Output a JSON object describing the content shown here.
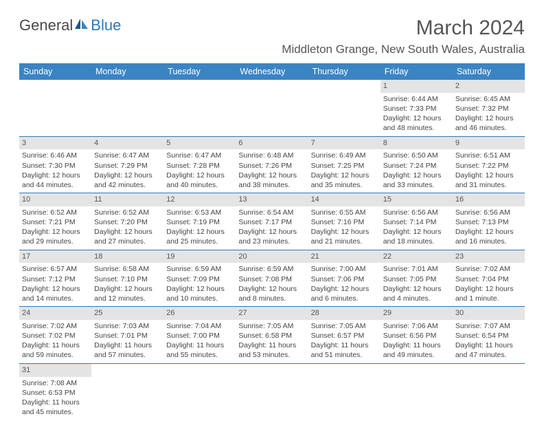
{
  "logo": {
    "general": "General",
    "blue": "Blue"
  },
  "title": "March 2024",
  "location": "Middleton Grange, New South Wales, Australia",
  "colors": {
    "header_bg": "#3b84c4",
    "header_text": "#ffffff",
    "daynum_bg": "#e4e4e4",
    "border": "#2a7ab9",
    "text": "#444444",
    "logo_blue": "#2a7ab9"
  },
  "weekdays": [
    "Sunday",
    "Monday",
    "Tuesday",
    "Wednesday",
    "Thursday",
    "Friday",
    "Saturday"
  ],
  "weeks": [
    [
      {
        "n": "",
        "empty": true
      },
      {
        "n": "",
        "empty": true
      },
      {
        "n": "",
        "empty": true
      },
      {
        "n": "",
        "empty": true
      },
      {
        "n": "",
        "empty": true
      },
      {
        "n": "1",
        "sr": "Sunrise: 6:44 AM",
        "ss": "Sunset: 7:33 PM",
        "dl1": "Daylight: 12 hours",
        "dl2": "and 48 minutes."
      },
      {
        "n": "2",
        "sr": "Sunrise: 6:45 AM",
        "ss": "Sunset: 7:32 PM",
        "dl1": "Daylight: 12 hours",
        "dl2": "and 46 minutes."
      }
    ],
    [
      {
        "n": "3",
        "sr": "Sunrise: 6:46 AM",
        "ss": "Sunset: 7:30 PM",
        "dl1": "Daylight: 12 hours",
        "dl2": "and 44 minutes."
      },
      {
        "n": "4",
        "sr": "Sunrise: 6:47 AM",
        "ss": "Sunset: 7:29 PM",
        "dl1": "Daylight: 12 hours",
        "dl2": "and 42 minutes."
      },
      {
        "n": "5",
        "sr": "Sunrise: 6:47 AM",
        "ss": "Sunset: 7:28 PM",
        "dl1": "Daylight: 12 hours",
        "dl2": "and 40 minutes."
      },
      {
        "n": "6",
        "sr": "Sunrise: 6:48 AM",
        "ss": "Sunset: 7:26 PM",
        "dl1": "Daylight: 12 hours",
        "dl2": "and 38 minutes."
      },
      {
        "n": "7",
        "sr": "Sunrise: 6:49 AM",
        "ss": "Sunset: 7:25 PM",
        "dl1": "Daylight: 12 hours",
        "dl2": "and 35 minutes."
      },
      {
        "n": "8",
        "sr": "Sunrise: 6:50 AM",
        "ss": "Sunset: 7:24 PM",
        "dl1": "Daylight: 12 hours",
        "dl2": "and 33 minutes."
      },
      {
        "n": "9",
        "sr": "Sunrise: 6:51 AM",
        "ss": "Sunset: 7:22 PM",
        "dl1": "Daylight: 12 hours",
        "dl2": "and 31 minutes."
      }
    ],
    [
      {
        "n": "10",
        "sr": "Sunrise: 6:52 AM",
        "ss": "Sunset: 7:21 PM",
        "dl1": "Daylight: 12 hours",
        "dl2": "and 29 minutes."
      },
      {
        "n": "11",
        "sr": "Sunrise: 6:52 AM",
        "ss": "Sunset: 7:20 PM",
        "dl1": "Daylight: 12 hours",
        "dl2": "and 27 minutes."
      },
      {
        "n": "12",
        "sr": "Sunrise: 6:53 AM",
        "ss": "Sunset: 7:19 PM",
        "dl1": "Daylight: 12 hours",
        "dl2": "and 25 minutes."
      },
      {
        "n": "13",
        "sr": "Sunrise: 6:54 AM",
        "ss": "Sunset: 7:17 PM",
        "dl1": "Daylight: 12 hours",
        "dl2": "and 23 minutes."
      },
      {
        "n": "14",
        "sr": "Sunrise: 6:55 AM",
        "ss": "Sunset: 7:16 PM",
        "dl1": "Daylight: 12 hours",
        "dl2": "and 21 minutes."
      },
      {
        "n": "15",
        "sr": "Sunrise: 6:56 AM",
        "ss": "Sunset: 7:14 PM",
        "dl1": "Daylight: 12 hours",
        "dl2": "and 18 minutes."
      },
      {
        "n": "16",
        "sr": "Sunrise: 6:56 AM",
        "ss": "Sunset: 7:13 PM",
        "dl1": "Daylight: 12 hours",
        "dl2": "and 16 minutes."
      }
    ],
    [
      {
        "n": "17",
        "sr": "Sunrise: 6:57 AM",
        "ss": "Sunset: 7:12 PM",
        "dl1": "Daylight: 12 hours",
        "dl2": "and 14 minutes."
      },
      {
        "n": "18",
        "sr": "Sunrise: 6:58 AM",
        "ss": "Sunset: 7:10 PM",
        "dl1": "Daylight: 12 hours",
        "dl2": "and 12 minutes."
      },
      {
        "n": "19",
        "sr": "Sunrise: 6:59 AM",
        "ss": "Sunset: 7:09 PM",
        "dl1": "Daylight: 12 hours",
        "dl2": "and 10 minutes."
      },
      {
        "n": "20",
        "sr": "Sunrise: 6:59 AM",
        "ss": "Sunset: 7:08 PM",
        "dl1": "Daylight: 12 hours",
        "dl2": "and 8 minutes."
      },
      {
        "n": "21",
        "sr": "Sunrise: 7:00 AM",
        "ss": "Sunset: 7:06 PM",
        "dl1": "Daylight: 12 hours",
        "dl2": "and 6 minutes."
      },
      {
        "n": "22",
        "sr": "Sunrise: 7:01 AM",
        "ss": "Sunset: 7:05 PM",
        "dl1": "Daylight: 12 hours",
        "dl2": "and 4 minutes."
      },
      {
        "n": "23",
        "sr": "Sunrise: 7:02 AM",
        "ss": "Sunset: 7:04 PM",
        "dl1": "Daylight: 12 hours",
        "dl2": "and 1 minute."
      }
    ],
    [
      {
        "n": "24",
        "sr": "Sunrise: 7:02 AM",
        "ss": "Sunset: 7:02 PM",
        "dl1": "Daylight: 11 hours",
        "dl2": "and 59 minutes."
      },
      {
        "n": "25",
        "sr": "Sunrise: 7:03 AM",
        "ss": "Sunset: 7:01 PM",
        "dl1": "Daylight: 11 hours",
        "dl2": "and 57 minutes."
      },
      {
        "n": "26",
        "sr": "Sunrise: 7:04 AM",
        "ss": "Sunset: 7:00 PM",
        "dl1": "Daylight: 11 hours",
        "dl2": "and 55 minutes."
      },
      {
        "n": "27",
        "sr": "Sunrise: 7:05 AM",
        "ss": "Sunset: 6:58 PM",
        "dl1": "Daylight: 11 hours",
        "dl2": "and 53 minutes."
      },
      {
        "n": "28",
        "sr": "Sunrise: 7:05 AM",
        "ss": "Sunset: 6:57 PM",
        "dl1": "Daylight: 11 hours",
        "dl2": "and 51 minutes."
      },
      {
        "n": "29",
        "sr": "Sunrise: 7:06 AM",
        "ss": "Sunset: 6:56 PM",
        "dl1": "Daylight: 11 hours",
        "dl2": "and 49 minutes."
      },
      {
        "n": "30",
        "sr": "Sunrise: 7:07 AM",
        "ss": "Sunset: 6:54 PM",
        "dl1": "Daylight: 11 hours",
        "dl2": "and 47 minutes."
      }
    ],
    [
      {
        "n": "31",
        "sr": "Sunrise: 7:08 AM",
        "ss": "Sunset: 6:53 PM",
        "dl1": "Daylight: 11 hours",
        "dl2": "and 45 minutes."
      },
      {
        "n": "",
        "empty": true
      },
      {
        "n": "",
        "empty": true
      },
      {
        "n": "",
        "empty": true
      },
      {
        "n": "",
        "empty": true
      },
      {
        "n": "",
        "empty": true
      },
      {
        "n": "",
        "empty": true
      }
    ]
  ]
}
